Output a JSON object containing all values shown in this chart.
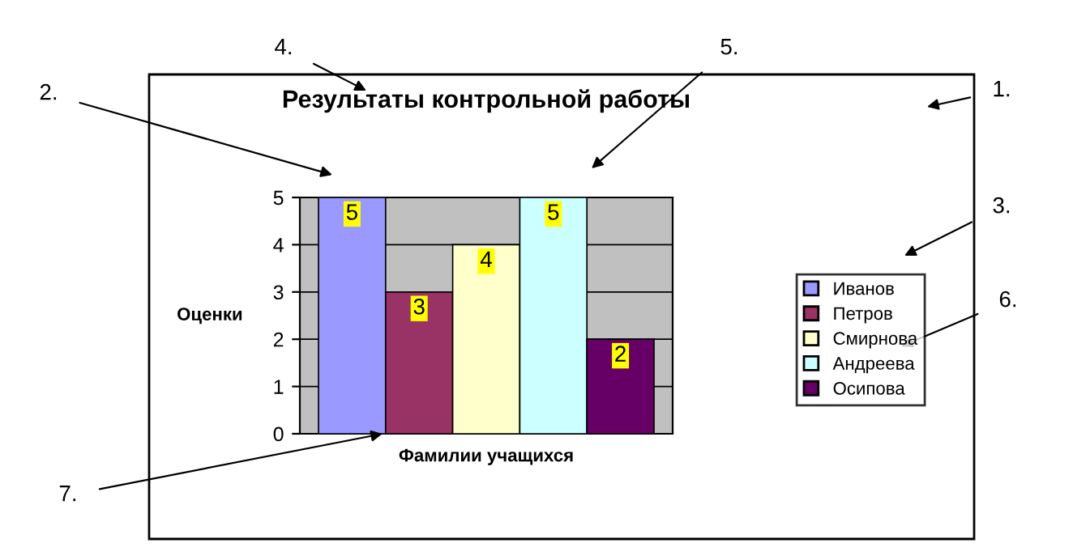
{
  "chart_data": {
    "type": "bar",
    "title": "Результаты контрольной работы",
    "xlabel": "Фамилии учащихся",
    "ylabel": "Оценки",
    "categories": [
      null
    ],
    "series": [
      {
        "name": "Иванов",
        "color": "#9999ff",
        "values": [
          5
        ]
      },
      {
        "name": "Петров",
        "color": "#993366",
        "values": [
          3
        ]
      },
      {
        "name": "Смирнова",
        "color": "#ffffcc",
        "values": [
          4
        ]
      },
      {
        "name": "Андреева",
        "color": "#ccffff",
        "values": [
          5
        ]
      },
      {
        "name": "Осипова",
        "color": "#660066",
        "values": [
          2
        ]
      }
    ],
    "ylim": [
      0,
      5
    ],
    "yticks": [
      0,
      1,
      2,
      3,
      4,
      5
    ],
    "grid": "y",
    "legend": "right",
    "data_labels": true,
    "annotations": [
      "1.",
      "2.",
      "3.",
      "4.",
      "5.",
      "6.",
      "7."
    ]
  }
}
